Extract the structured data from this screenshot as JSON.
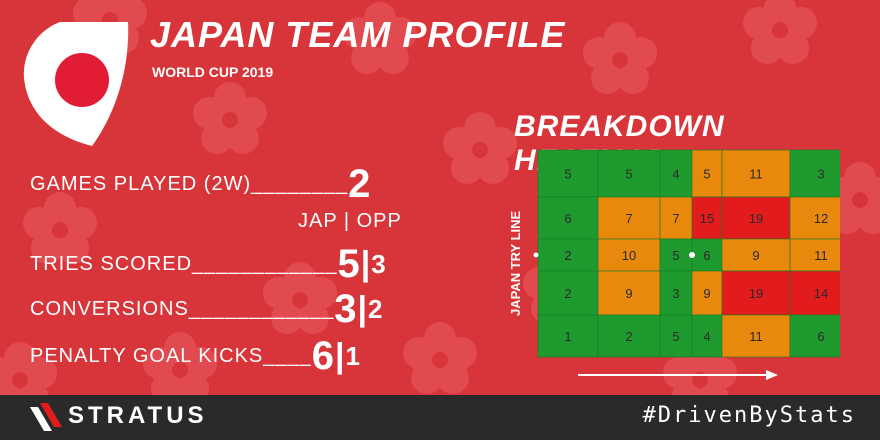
{
  "header": {
    "title": "JAPAN TEAM PROFILE",
    "subtitle": "WORLD CUP 2019"
  },
  "stats": {
    "games_label": "GAMES PLAYED (2W)________",
    "games_value": "2",
    "column_header": "JAP | OPP",
    "rows": [
      {
        "label": "TRIES SCORED____________",
        "jap": "5",
        "opp": "3"
      },
      {
        "label": "CONVERSIONS____________",
        "jap": "3",
        "opp": "2"
      },
      {
        "label": "PENALTY GOAL KICKS____",
        "jap": "6",
        "opp": "1"
      }
    ]
  },
  "heatmap": {
    "title": "BREAKDOWN HEATMAP",
    "axis_label": "JAPAN TRY LINE",
    "colors": {
      "green": "#1f9a2e",
      "orange": "#e8890d",
      "red": "#e21c1c"
    },
    "rows": [
      [
        {
          "v": "5",
          "c": "green"
        },
        {
          "v": "5",
          "c": "green"
        },
        {
          "v": "4",
          "c": "green"
        },
        {
          "v": "5",
          "c": "orange"
        },
        {
          "v": "11",
          "c": "orange"
        },
        {
          "v": "3",
          "c": "green"
        }
      ],
      [
        {
          "v": "6",
          "c": "green"
        },
        {
          "v": "7",
          "c": "orange"
        },
        {
          "v": "7",
          "c": "orange"
        },
        {
          "v": "15",
          "c": "red"
        },
        {
          "v": "19",
          "c": "red"
        },
        {
          "v": "12",
          "c": "orange"
        }
      ],
      [
        {
          "v": "2",
          "c": "green"
        },
        {
          "v": "10",
          "c": "orange"
        },
        {
          "v": "5",
          "c": "green"
        },
        {
          "v": "6",
          "c": "green"
        },
        {
          "v": "9",
          "c": "orange"
        },
        {
          "v": "11",
          "c": "orange"
        }
      ],
      [
        {
          "v": "2",
          "c": "green"
        },
        {
          "v": "9",
          "c": "orange"
        },
        {
          "v": "3",
          "c": "green"
        },
        {
          "v": "9",
          "c": "orange"
        },
        {
          "v": "19",
          "c": "red"
        },
        {
          "v": "14",
          "c": "red"
        }
      ],
      [
        {
          "v": "1",
          "c": "green"
        },
        {
          "v": "2",
          "c": "green"
        },
        {
          "v": "5",
          "c": "green"
        },
        {
          "v": "4",
          "c": "green"
        },
        {
          "v": "11",
          "c": "orange"
        },
        {
          "v": "6",
          "c": "green"
        }
      ]
    ]
  },
  "footer": {
    "brand": "STRATUS",
    "hashtag": "#DrivenByStats"
  }
}
